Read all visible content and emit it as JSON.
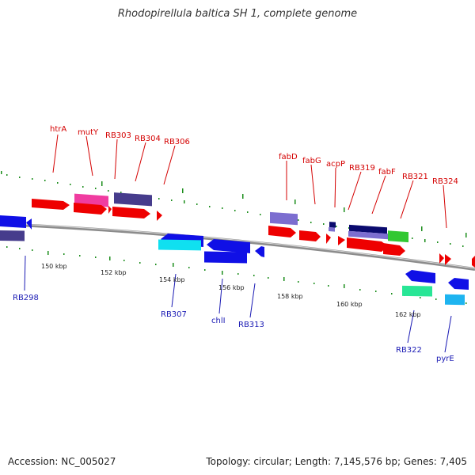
{
  "title": "Rhodopirellula baltica SH 1, complete genome",
  "footer": {
    "accession": "Accession: NC_005027",
    "summary": "Topology: circular; Length: 7,145,576 bp; Genes: 7,405"
  },
  "scale_labels": [
    "150 kbp",
    "152 kbp",
    "154 kbp",
    "156 kbp",
    "158 kbp",
    "160 kbp",
    "162 kbp"
  ],
  "gene_labels_top": [
    "htrA",
    "mutY",
    "RB303",
    "RB304",
    "RB306",
    "fabD",
    "fabG",
    "acpP",
    "RB319",
    "fabF",
    "RB321",
    "RB324"
  ],
  "gene_labels_bottom": [
    "RB298",
    "RB307",
    "chlI",
    "RB313",
    "RB322",
    "pyrE"
  ],
  "colors": {
    "red": "#ee0000",
    "pink": "#f03ca0",
    "dark_purple": "#463c8c",
    "light_purple": "#7c6ed0",
    "navy": "#0a0a6e",
    "blue": "#1010e6",
    "cyan": "#10e0f0",
    "sky": "#1eb4f0",
    "mint": "#28e696",
    "green": "#32c832",
    "backbone": "#8c8c8c",
    "tick": "#1a8c1a",
    "label_red": "#d40000",
    "label_blue": "#1a1ab4"
  }
}
